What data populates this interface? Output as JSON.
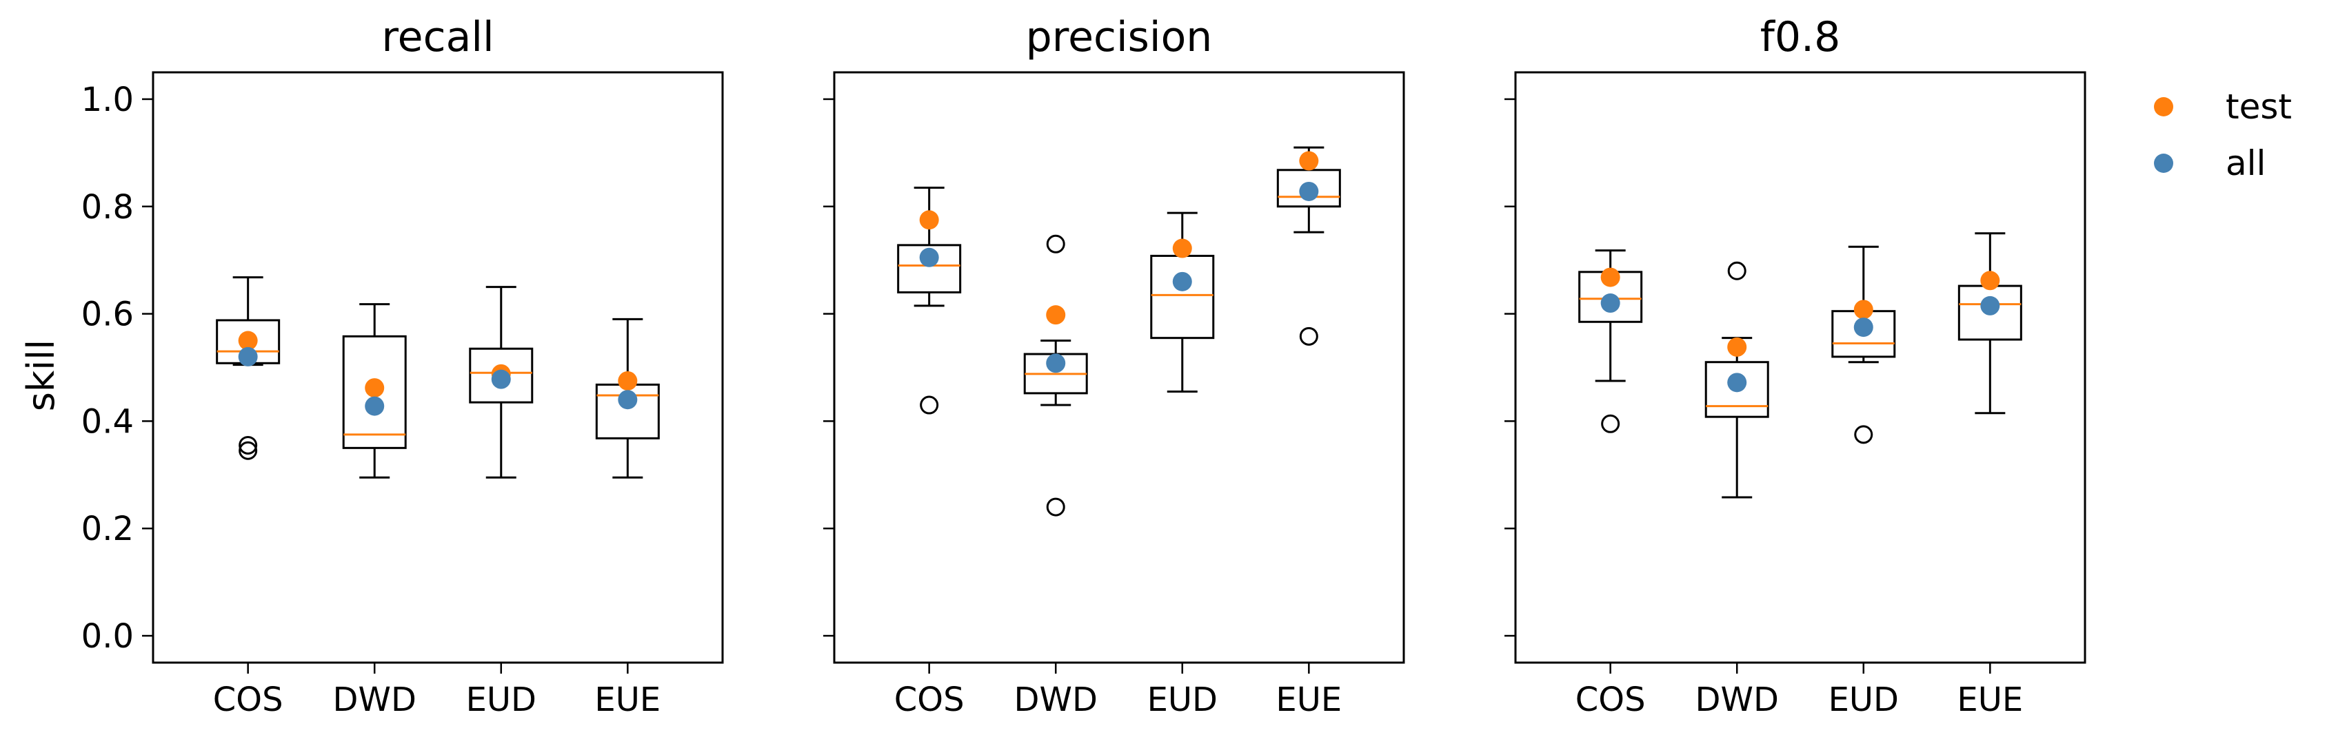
{
  "chart_data": {
    "type": "box",
    "ylabel": "skill",
    "ylim": [
      -0.05,
      1.05
    ],
    "yticks": [
      0.0,
      0.2,
      0.4,
      0.6,
      0.8,
      1.0
    ],
    "ytick_labels": [
      "0.0",
      "0.2",
      "0.4",
      "0.6",
      "0.8",
      "1.0"
    ],
    "categories": [
      "COS",
      "DWD",
      "EUD",
      "EUE"
    ],
    "colors": {
      "test": "#ff7f0e",
      "all": "#4682b4",
      "median": "#ff7f0e",
      "box": "#000000"
    },
    "legend": {
      "placement": "right",
      "entries": [
        {
          "label": "test",
          "key": "test"
        },
        {
          "label": "all",
          "key": "all"
        }
      ]
    },
    "panels": [
      {
        "title": "recall",
        "boxes": [
          {
            "category": "COS",
            "whislo": 0.505,
            "q1": 0.508,
            "median": 0.53,
            "q3": 0.588,
            "whishi": 0.668,
            "fliers": [
              0.345,
              0.355
            ],
            "test": 0.55,
            "all": 0.52
          },
          {
            "category": "DWD",
            "whislo": 0.295,
            "q1": 0.35,
            "median": 0.375,
            "q3": 0.558,
            "whishi": 0.618,
            "fliers": [],
            "test": 0.462,
            "all": 0.428
          },
          {
            "category": "EUD",
            "whislo": 0.295,
            "q1": 0.435,
            "median": 0.49,
            "q3": 0.535,
            "whishi": 0.65,
            "fliers": [],
            "test": 0.488,
            "all": 0.478
          },
          {
            "category": "EUE",
            "whislo": 0.295,
            "q1": 0.368,
            "median": 0.448,
            "q3": 0.468,
            "whishi": 0.59,
            "fliers": [],
            "test": 0.475,
            "all": 0.44
          }
        ]
      },
      {
        "title": "precision",
        "boxes": [
          {
            "category": "COS",
            "whislo": 0.615,
            "q1": 0.64,
            "median": 0.69,
            "q3": 0.728,
            "whishi": 0.835,
            "fliers": [
              0.43
            ],
            "test": 0.775,
            "all": 0.705
          },
          {
            "category": "DWD",
            "whislo": 0.43,
            "q1": 0.452,
            "median": 0.488,
            "q3": 0.525,
            "whishi": 0.55,
            "fliers": [
              0.73,
              0.24
            ],
            "test": 0.598,
            "all": 0.508
          },
          {
            "category": "EUD",
            "whislo": 0.455,
            "q1": 0.555,
            "median": 0.635,
            "q3": 0.708,
            "whishi": 0.788,
            "fliers": [],
            "test": 0.722,
            "all": 0.66
          },
          {
            "category": "EUE",
            "whislo": 0.752,
            "q1": 0.8,
            "median": 0.818,
            "q3": 0.868,
            "whishi": 0.91,
            "fliers": [
              0.558
            ],
            "test": 0.885,
            "all": 0.828
          }
        ]
      },
      {
        "title": "f0.8",
        "boxes": [
          {
            "category": "COS",
            "whislo": 0.475,
            "q1": 0.585,
            "median": 0.628,
            "q3": 0.678,
            "whishi": 0.718,
            "fliers": [
              0.395
            ],
            "test": 0.668,
            "all": 0.62
          },
          {
            "category": "DWD",
            "whislo": 0.258,
            "q1": 0.408,
            "median": 0.428,
            "q3": 0.51,
            "whishi": 0.555,
            "fliers": [
              0.68
            ],
            "test": 0.538,
            "all": 0.472
          },
          {
            "category": "EUD",
            "whislo": 0.51,
            "q1": 0.52,
            "median": 0.545,
            "q3": 0.605,
            "whishi": 0.725,
            "fliers": [
              0.375
            ],
            "test": 0.608,
            "all": 0.575
          },
          {
            "category": "EUE",
            "whislo": 0.415,
            "q1": 0.552,
            "median": 0.618,
            "q3": 0.652,
            "whishi": 0.75,
            "fliers": [],
            "test": 0.662,
            "all": 0.615
          }
        ]
      }
    ]
  }
}
